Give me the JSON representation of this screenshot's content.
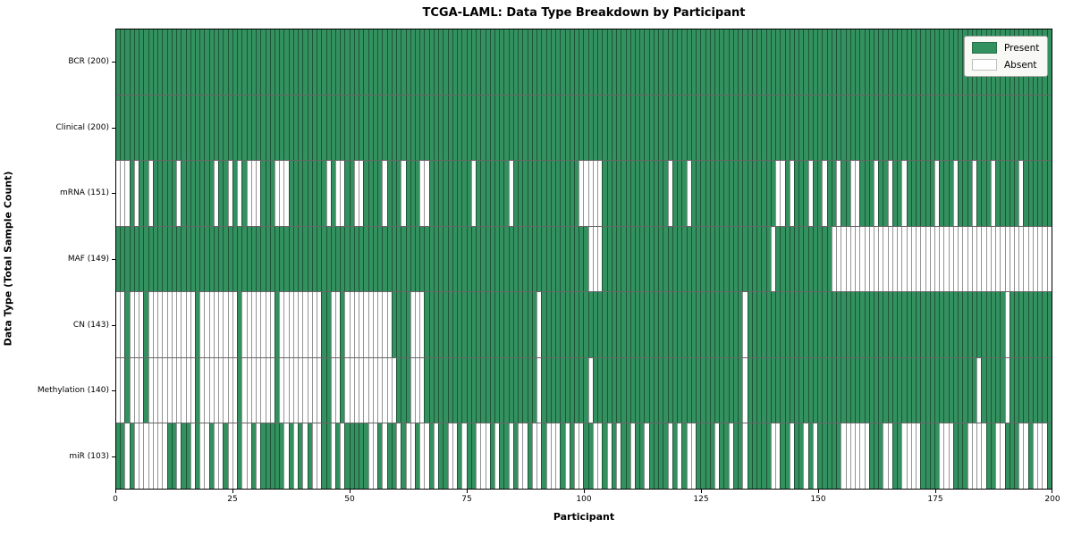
{
  "figure": {
    "title": "TCGA-LAML: Data Type Breakdown by Participant",
    "xlabel": "Participant",
    "ylabel": "Data Type (Total Sample Count)"
  },
  "legend": {
    "items": [
      {
        "label": "Present",
        "state": "present"
      },
      {
        "label": "Absent",
        "state": "absent"
      }
    ]
  },
  "colors": {
    "present": "#33915f",
    "absent": "#ffffff",
    "cell_edge": "rgba(0,0,0,0.42)",
    "row_divider": "rgba(0,0,0,0.6)",
    "axis": "#000000",
    "legend_bg": "#f8f8f5",
    "legend_border": "#a6a6a6"
  },
  "n_participants": 200,
  "x_ticks": [
    0,
    25,
    50,
    75,
    100,
    125,
    150,
    175,
    200
  ],
  "chart_data": {
    "type": "heatmap",
    "title": "TCGA-LAML: Data Type Breakdown by Participant",
    "xlabel": "Participant",
    "ylabel": "Data Type (Total Sample Count)",
    "x_range": [
      0,
      200
    ],
    "grid": false,
    "legend_entries": [
      "Present",
      "Absent"
    ],
    "legend_position": "upper right",
    "encoding": "each row = data type across 200 participants; cell green=present, white=absent; absent_participants lists 0-based participant indices with missing data",
    "rows": [
      {
        "name": "BCR",
        "label": "BCR (200)",
        "present_count": 200,
        "absent_participants": []
      },
      {
        "name": "Clinical",
        "label": "Clinical (200)",
        "present_count": 200,
        "absent_participants": []
      },
      {
        "name": "mRNA",
        "label": "mRNA (151)",
        "present_count": 151,
        "absent_participants": [
          0,
          1,
          2,
          4,
          7,
          13,
          21,
          24,
          26,
          28,
          29,
          30,
          34,
          35,
          36,
          45,
          47,
          48,
          51,
          52,
          57,
          61,
          65,
          66,
          76,
          84,
          99,
          100,
          101,
          102,
          103,
          118,
          122,
          141,
          142,
          144,
          148,
          151,
          154,
          157,
          158,
          162,
          165,
          168,
          175,
          179,
          183,
          187,
          193
        ]
      },
      {
        "name": "MAF",
        "label": "MAF (149)",
        "present_count": 149,
        "absent_participants": [
          101,
          102,
          103,
          140,
          153,
          154,
          155,
          156,
          157,
          158,
          159,
          160,
          161,
          162,
          163,
          164,
          165,
          166,
          167,
          168,
          169,
          170,
          171,
          172,
          173,
          174,
          175,
          176,
          177,
          178,
          179,
          180,
          181,
          182,
          183,
          184,
          185,
          186,
          187,
          188,
          189,
          190,
          191,
          192,
          193,
          194,
          195,
          196,
          197,
          198,
          199
        ]
      },
      {
        "name": "CN",
        "label": "CN (143)",
        "present_count": 143,
        "absent_participants": [
          0,
          1,
          3,
          4,
          5,
          7,
          8,
          9,
          10,
          11,
          12,
          13,
          14,
          15,
          16,
          18,
          19,
          20,
          21,
          22,
          23,
          24,
          25,
          27,
          28,
          29,
          30,
          31,
          32,
          33,
          35,
          36,
          37,
          38,
          39,
          40,
          41,
          42,
          43,
          46,
          47,
          49,
          50,
          51,
          52,
          53,
          54,
          55,
          56,
          57,
          58,
          63,
          64,
          65,
          90,
          134,
          190
        ]
      },
      {
        "name": "Methylation",
        "label": "Methylation (140)",
        "present_count": 140,
        "absent_participants": [
          0,
          1,
          3,
          4,
          5,
          7,
          8,
          9,
          10,
          11,
          12,
          13,
          14,
          15,
          16,
          18,
          19,
          20,
          21,
          22,
          23,
          24,
          25,
          27,
          28,
          29,
          30,
          31,
          32,
          33,
          35,
          36,
          37,
          38,
          39,
          40,
          41,
          42,
          43,
          46,
          47,
          49,
          50,
          51,
          52,
          53,
          54,
          55,
          56,
          57,
          58,
          59,
          63,
          64,
          65,
          90,
          101,
          134,
          184,
          190
        ]
      },
      {
        "name": "miR",
        "label": "miR (103)",
        "present_count": 103,
        "absent_participants": [
          2,
          4,
          5,
          6,
          7,
          8,
          9,
          10,
          13,
          16,
          18,
          19,
          21,
          22,
          24,
          25,
          27,
          28,
          30,
          36,
          38,
          40,
          42,
          43,
          46,
          48,
          54,
          55,
          57,
          60,
          62,
          63,
          65,
          66,
          68,
          71,
          72,
          74,
          77,
          78,
          79,
          81,
          84,
          86,
          87,
          89,
          90,
          92,
          93,
          94,
          96,
          98,
          99,
          102,
          103,
          105,
          107,
          110,
          113,
          118,
          120,
          122,
          123,
          128,
          131,
          134,
          140,
          141,
          144,
          147,
          149,
          155,
          156,
          157,
          158,
          159,
          160,
          164,
          165,
          168,
          169,
          170,
          171,
          176,
          177,
          178,
          182,
          183,
          184,
          185,
          188,
          189,
          193,
          194,
          196,
          197,
          198
        ]
      }
    ]
  }
}
